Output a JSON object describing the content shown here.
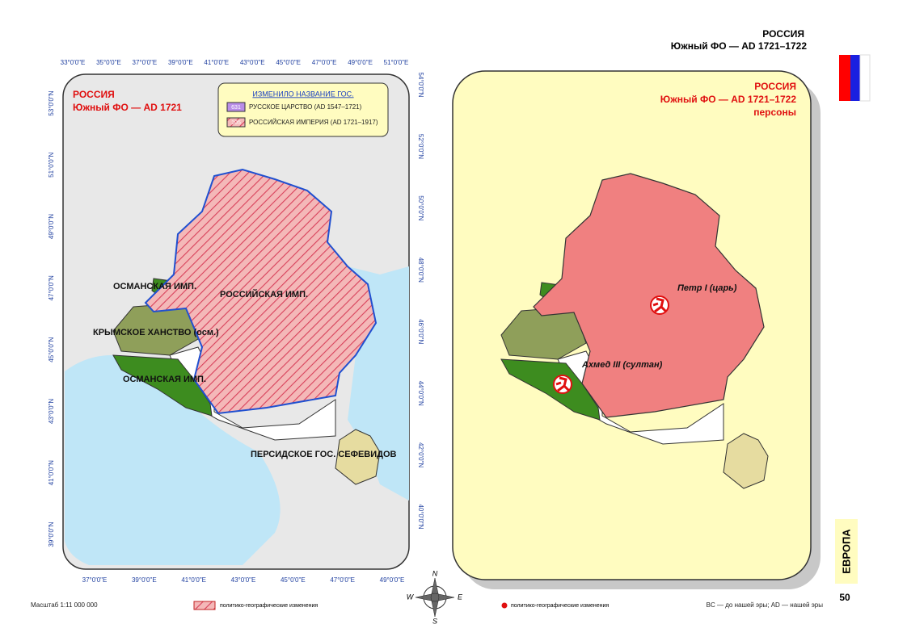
{
  "header": {
    "title": "РОССИЯ",
    "subtitle": "Южный ФО — AD 1721–1722"
  },
  "left_map": {
    "title": "РОССИЯ",
    "subtitle": "Южный ФО — AD 1721",
    "legend": {
      "title": "ИЗМЕНИЛО НАЗВАНИЕ ГОС.",
      "items": [
        {
          "code": "631",
          "label": "РУССКОЕ ЦАРСТВО (AD 1547–1721)"
        },
        {
          "code": "105",
          "label": "РОССИЙСКАЯ ИМПЕРИЯ (AD 1721–1917)"
        }
      ]
    },
    "regions": [
      "ОСМАНСКАЯ ИМП.",
      "РОССИЙСКАЯ ИМП.",
      "КРЫМСКОЕ ХАНСТВО (осм.)",
      "ОСМАНСКАЯ ИМП.",
      "ПЕРСИДСКОЕ ГОС. СЕФЕВИДОВ"
    ],
    "top_ticks": [
      "33°0'0\"E",
      "35°0'0\"E",
      "37°0'0\"E",
      "39°0'0\"E",
      "41°0'0\"E",
      "43°0'0\"E",
      "45°0'0\"E",
      "47°0'0\"E",
      "49°0'0\"E",
      "51°0'0\"E"
    ],
    "bottom_ticks": [
      "37°0'0\"E",
      "39°0'0\"E",
      "41°0'0\"E",
      "43°0'0\"E",
      "45°0'0\"E",
      "47°0'0\"E",
      "49°0'0\"E"
    ],
    "left_ticks": [
      "53°0'0\"N",
      "51°0'0\"N",
      "49°0'0\"N",
      "47°0'0\"N",
      "45°0'0\"N",
      "43°0'0\"N",
      "41°0'0\"N",
      "39°0'0\"N"
    ],
    "right_ticks": [
      "54°0'0\"N",
      "52°0'0\"N",
      "50°0'0\"N",
      "48°0'0\"N",
      "46°0'0\"N",
      "44°0'0\"N",
      "42°0'0\"N",
      "40°0'0\"N"
    ]
  },
  "right_map": {
    "title": "РОССИЯ",
    "subtitle": "Южный ФО — AD 1721–1722",
    "note": "персоны",
    "persons": [
      "Петр I (царь)",
      "Ахмед III (султан)"
    ]
  },
  "compass": [
    "N",
    "W",
    "E",
    "S"
  ],
  "footer": {
    "scale": "Масштаб 1:11 000 000",
    "hatch_legend": "политико-географические изменения",
    "dot_legend": "политико-географические изменения",
    "era_note": "BC — до нашей эры; AD — нашей эры"
  },
  "sidebar": {
    "region": "ЕВРОПА",
    "page": "50"
  }
}
